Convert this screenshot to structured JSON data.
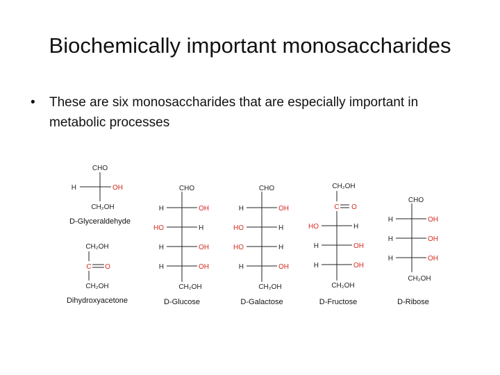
{
  "slide": {
    "title": "Biochemically important monosaccharides",
    "bullet": "These are six monosaccharides that are especially important in metabolic processes"
  },
  "colors": {
    "text": "#111111",
    "red": "#d42a1e",
    "bond": "#222222"
  },
  "sugars": {
    "glyceraldehyde": {
      "top": "CHO",
      "left": "H",
      "right": "OH",
      "bottom": "CH₂OH",
      "name": "D-Glyceraldehyde"
    },
    "dihydroxyacetone": {
      "top": "CH₂OH",
      "carbonyl_c": "C",
      "carbonyl_o": "O",
      "bottom": "CH₂OH",
      "name": "Dihydroxyacetone"
    },
    "glucose": {
      "top": "CHO",
      "r1_left": "H",
      "r1_right": "OH",
      "r2_left": "HO",
      "r2_right": "H",
      "r3_left": "H",
      "r3_right": "OH",
      "r4_left": "H",
      "r4_right": "OH",
      "bottom": "CH₂OH",
      "name": "D-Glucose"
    },
    "galactose": {
      "top": "CHO",
      "r1_left": "H",
      "r1_right": "OH",
      "r2_left": "HO",
      "r2_right": "H",
      "r3_left": "HO",
      "r3_right": "H",
      "r4_left": "H",
      "r4_right": "OH",
      "bottom": "CH₂OH",
      "name": "D-Galactose"
    },
    "fructose": {
      "top": "CH₂OH",
      "carbonyl_c": "C",
      "carbonyl_o": "O",
      "r2_left": "HO",
      "r2_right": "H",
      "r3_left": "H",
      "r3_right": "OH",
      "r4_left": "H",
      "r4_right": "OH",
      "bottom": "CH₂OH",
      "name": "D-Fructose"
    },
    "ribose": {
      "top": "CHO",
      "r1_left": "H",
      "r1_right": "OH",
      "r2_left": "H",
      "r2_right": "OH",
      "r3_left": "H",
      "r3_right": "OH",
      "bottom": "CH₂OH",
      "name": "D-Ribose"
    }
  }
}
